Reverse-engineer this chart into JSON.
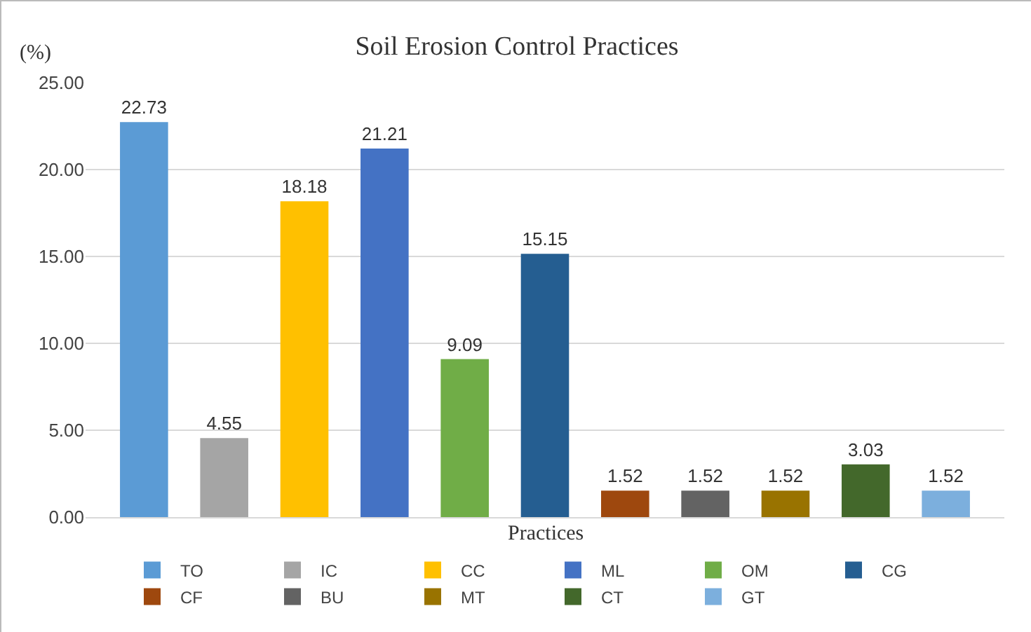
{
  "chart_data": {
    "type": "bar",
    "title": "Soil Erosion Control Practices",
    "xlabel": "Practices",
    "ylabel": "(%)",
    "categories": [
      null
    ],
    "series": [
      {
        "name": "TO",
        "color": "#5b9bd5",
        "values": [
          22.73
        ]
      },
      {
        "name": "IC",
        "color": "#a5a5a5",
        "values": [
          4.55
        ]
      },
      {
        "name": "CC",
        "color": "#ffc000",
        "values": [
          18.18
        ]
      },
      {
        "name": "ML",
        "color": "#4472c4",
        "values": [
          21.21
        ]
      },
      {
        "name": "OM",
        "color": "#70ad47",
        "values": [
          9.09
        ]
      },
      {
        "name": "CG",
        "color": "#255e91",
        "values": [
          15.15
        ]
      },
      {
        "name": "CF",
        "color": "#9e480e",
        "values": [
          1.52
        ]
      },
      {
        "name": "BU",
        "color": "#636363",
        "values": [
          1.52
        ]
      },
      {
        "name": "MT",
        "color": "#997300",
        "values": [
          1.52
        ]
      },
      {
        "name": "CT",
        "color": "#43682b",
        "values": [
          3.03
        ]
      },
      {
        "name": "GT",
        "color": "#7cafdd",
        "values": [
          1.52
        ]
      }
    ],
    "ylim": [
      0,
      25
    ],
    "yticks": [
      {
        "value": 0,
        "label": "0.00"
      },
      {
        "value": 5,
        "label": "5.00"
      },
      {
        "value": 10,
        "label": "10.00"
      },
      {
        "value": 15,
        "label": "15.00"
      },
      {
        "value": 20,
        "label": "20.00"
      },
      {
        "value": 25,
        "label": "25.00"
      }
    ],
    "grid": "y",
    "legend": "bottom",
    "data_labels": true,
    "tick_labels": "y"
  }
}
